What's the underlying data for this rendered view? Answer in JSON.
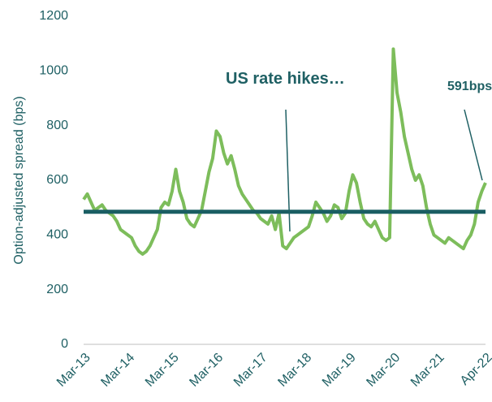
{
  "chart_data": {
    "type": "line",
    "y_label": "Option-adjusted spread (bps)",
    "categories": [
      "Mar-13",
      null,
      null,
      null,
      null,
      null,
      null,
      null,
      null,
      null,
      null,
      null,
      "Mar-14",
      null,
      null,
      null,
      null,
      null,
      null,
      null,
      null,
      null,
      null,
      null,
      "Mar-15",
      null,
      null,
      null,
      null,
      null,
      null,
      null,
      null,
      null,
      null,
      null,
      "Mar-16",
      null,
      null,
      null,
      null,
      null,
      null,
      null,
      null,
      null,
      null,
      null,
      "Mar-17",
      null,
      null,
      null,
      null,
      null,
      null,
      null,
      null,
      null,
      null,
      null,
      "Mar-18",
      null,
      null,
      null,
      null,
      null,
      null,
      null,
      null,
      null,
      null,
      null,
      "Mar-19",
      null,
      null,
      null,
      null,
      null,
      null,
      null,
      null,
      null,
      null,
      null,
      "Mar-20",
      null,
      null,
      null,
      null,
      null,
      null,
      null,
      null,
      null,
      null,
      null,
      "Mar-21",
      null,
      null,
      null,
      null,
      null,
      null,
      null,
      null,
      null,
      null,
      null,
      null,
      "Apr-22"
    ],
    "series": [
      {
        "color": "#7dbd5b",
        "values": [
          530,
          550,
          520,
          490,
          500,
          510,
          490,
          480,
          470,
          450,
          420,
          410,
          400,
          390,
          360,
          340,
          330,
          340,
          360,
          390,
          420,
          500,
          520,
          510,
          560,
          640,
          560,
          520,
          460,
          440,
          430,
          460,
          490,
          560,
          630,
          680,
          780,
          760,
          700,
          660,
          690,
          640,
          580,
          550,
          530,
          510,
          490,
          480,
          460,
          450,
          440,
          470,
          420,
          480,
          360,
          350,
          370,
          390,
          400,
          410,
          420,
          430,
          470,
          520,
          500,
          480,
          450,
          470,
          510,
          500,
          460,
          480,
          560,
          620,
          590,
          520,
          460,
          440,
          430,
          450,
          420,
          390,
          380,
          390,
          1080,
          920,
          850,
          760,
          700,
          640,
          600,
          620,
          580,
          500,
          440,
          400,
          390,
          380,
          370,
          390,
          380,
          370,
          360,
          350,
          380,
          400,
          440,
          520,
          560,
          591
        ]
      }
    ],
    "reference_line": {
      "value": 485,
      "color": "#1a5e63"
    },
    "annotations": [
      "US rate hikes…",
      "591bps"
    ],
    "ylim": [
      0,
      1200
    ],
    "yticks": [
      0,
      200,
      400,
      600,
      800,
      1000,
      1200
    ]
  }
}
